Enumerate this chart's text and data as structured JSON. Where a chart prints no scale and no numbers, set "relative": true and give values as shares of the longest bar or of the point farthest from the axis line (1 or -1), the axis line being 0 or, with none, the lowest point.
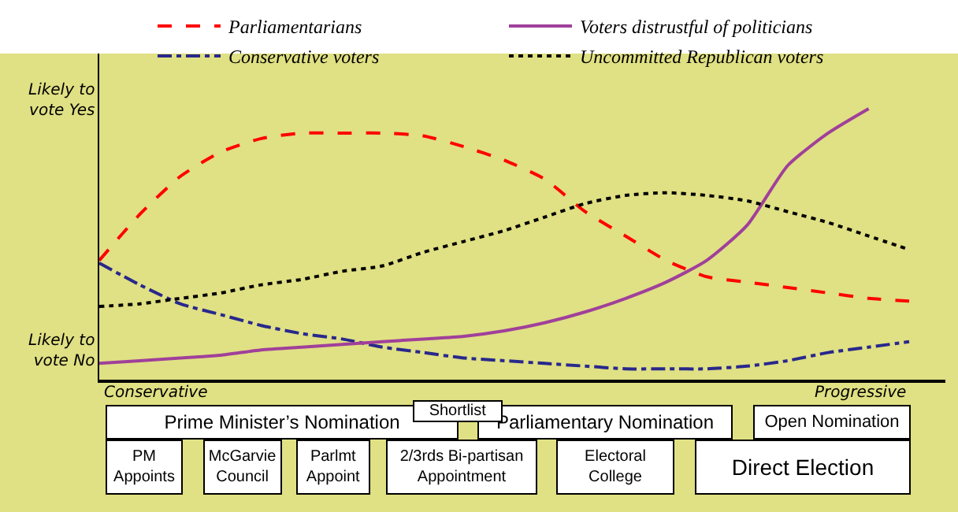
{
  "chart_data": {
    "type": "line",
    "relative": true,
    "legend": "top",
    "grid": false,
    "marker": "none",
    "categories": [
      null,
      null,
      null,
      null,
      null,
      null,
      null,
      null,
      null,
      null,
      null,
      null,
      null,
      null,
      null,
      null,
      null,
      null,
      null,
      null,
      null
    ],
    "series": [
      {
        "name": "Parliamentarians",
        "color": "#ff0000",
        "line_style": "dashed",
        "values": [
          0.44,
          0.61,
          0.75,
          0.84,
          0.89,
          0.91,
          0.91,
          0.91,
          0.9,
          0.86,
          0.81,
          0.74,
          0.62,
          0.53,
          0.44,
          0.38,
          0.36,
          0.34,
          0.32,
          0.3,
          0.29
        ]
      },
      {
        "name": "Conservative voters",
        "color": "#28288c",
        "line_style": "dashdot",
        "values": [
          0.43,
          0.35,
          0.28,
          0.24,
          0.2,
          0.17,
          0.15,
          0.12,
          0.1,
          0.08,
          0.07,
          0.06,
          0.05,
          0.04,
          0.04,
          0.04,
          0.05,
          0.07,
          0.1,
          0.12,
          0.14
        ]
      },
      {
        "name": "Voters distrustful of politicians",
        "color": "#a0409a",
        "line_style": "solid",
        "values": [
          0.06,
          0.07,
          0.08,
          0.09,
          0.11,
          0.12,
          0.13,
          0.14,
          0.15,
          0.16,
          0.18,
          0.21,
          0.25,
          0.3,
          0.36,
          0.44,
          0.57,
          0.79,
          0.91,
          1.0,
          null
        ]
      },
      {
        "name": "Uncommitted Republican voters",
        "color": "#000000",
        "line_style": "dotted",
        "values": [
          0.27,
          0.28,
          0.3,
          0.32,
          0.35,
          0.37,
          0.4,
          0.42,
          0.47,
          0.51,
          0.55,
          0.6,
          0.65,
          0.68,
          0.69,
          0.68,
          0.66,
          0.62,
          0.58,
          0.53,
          0.48
        ]
      }
    ],
    "annotations": [
      "Likely to vote Yes",
      "Likely to vote No",
      "Conservative",
      "Progressive",
      "Prime Minister’s Nomination",
      "Shortlist",
      "Parliamentary Nomination",
      "Open Nomination",
      "PM Appoints",
      "McGarvie Council",
      "Parlmt Appoint",
      "2/3rds Bi-partisan Appointment",
      "Electoral College",
      "Direct Election"
    ]
  }
}
